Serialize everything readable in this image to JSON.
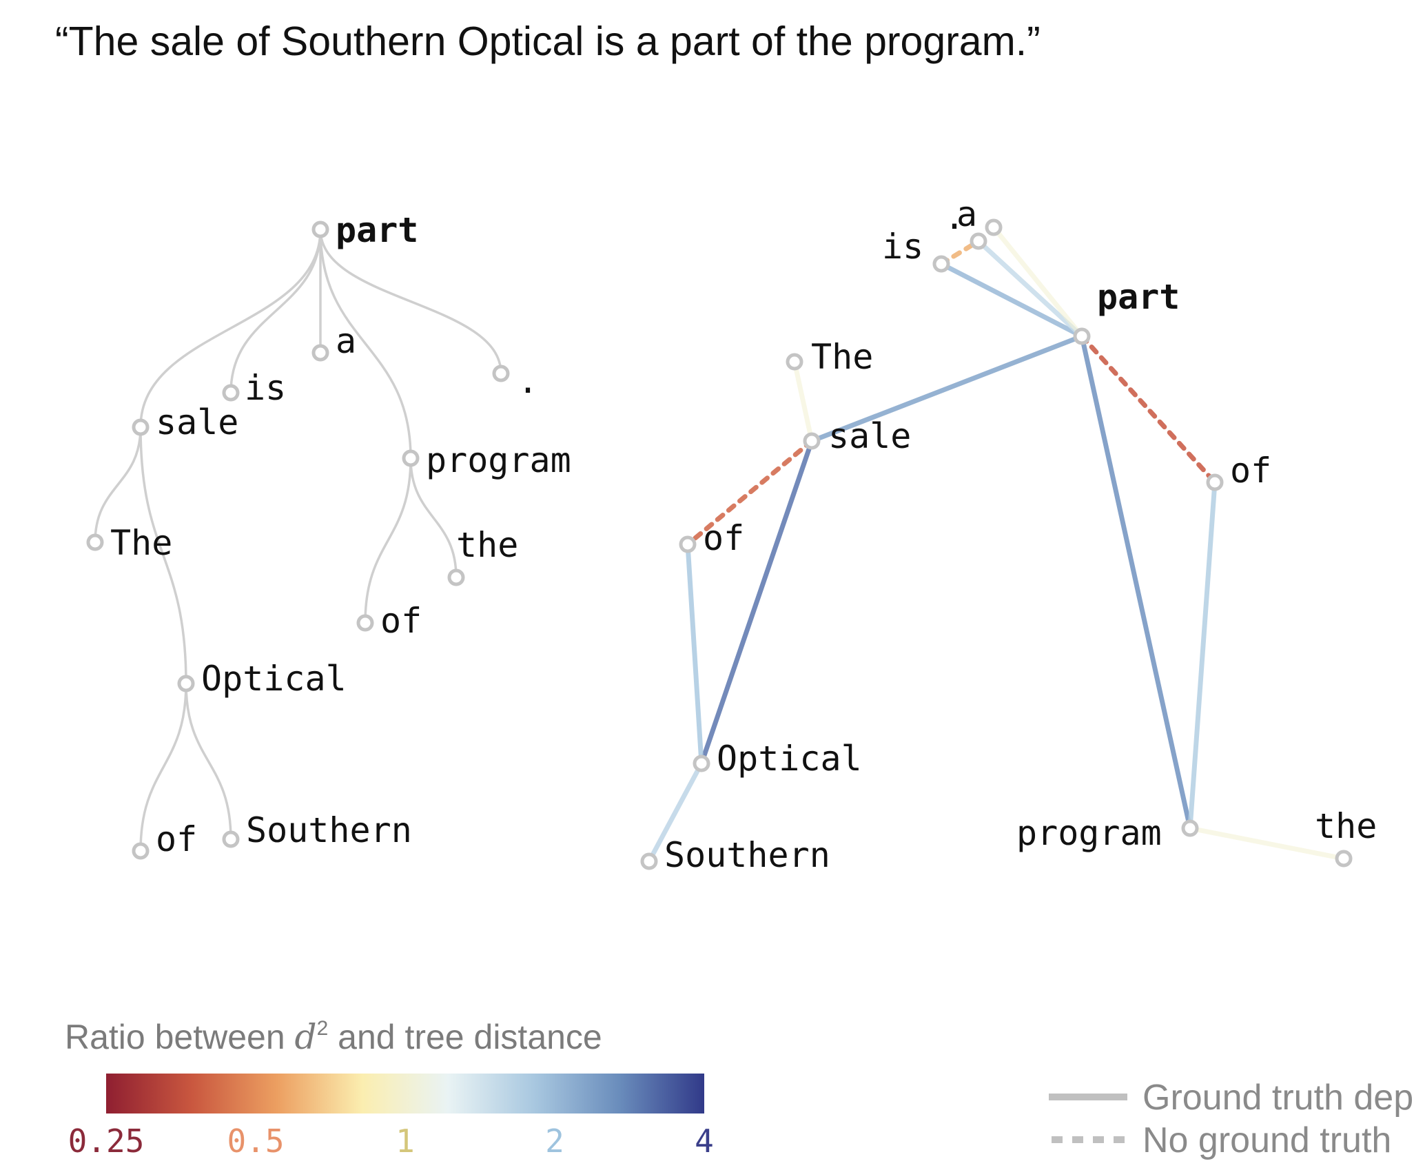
{
  "sentence": "“The sale of Southern Optical is a part of the program.”",
  "parse_tree": {
    "root": "part",
    "nodes": [
      "part",
      "is",
      "a",
      ".",
      "sale",
      "program",
      "The",
      "of",
      "the",
      "Optical",
      "of",
      "Southern"
    ],
    "edges": [
      [
        "part",
        "sale"
      ],
      [
        "part",
        "is"
      ],
      [
        "part",
        "a"
      ],
      [
        "part",
        "program"
      ],
      [
        "part",
        "."
      ],
      [
        "sale",
        "The"
      ],
      [
        "sale",
        "Optical"
      ],
      [
        "program",
        "of"
      ],
      [
        "program",
        "the"
      ],
      [
        "Optical",
        "of"
      ],
      [
        "Optical",
        "Southern"
      ]
    ]
  },
  "embedding_graph": {
    "root": "part",
    "nodes": [
      "a",
      ".",
      "is",
      "part",
      "The",
      "sale",
      "of",
      "of",
      "Optical",
      "Southern",
      "program",
      "the"
    ],
    "edges": [
      {
        "from": "is",
        "to": "part",
        "ratio": 2,
        "ground_truth": true
      },
      {
        "from": ".",
        "to": "part",
        "ratio": 1.5,
        "ground_truth": true
      },
      {
        "from": "a",
        "to": "part",
        "ratio": 1,
        "ground_truth": true
      },
      {
        "from": "is",
        "to": ".",
        "ratio": 0.6,
        "ground_truth": false
      },
      {
        "from": "sale",
        "to": "part",
        "ratio": 2.3,
        "ground_truth": true
      },
      {
        "from": "The",
        "to": "sale",
        "ratio": 1,
        "ground_truth": true
      },
      {
        "from": "sale",
        "to": "of",
        "ratio": 0.4,
        "ground_truth": false
      },
      {
        "from": "sale",
        "to": "Optical",
        "ratio": 3,
        "ground_truth": true
      },
      {
        "from": "of",
        "to": "Optical",
        "ratio": 1.8,
        "ground_truth": true
      },
      {
        "from": "Optical",
        "to": "Southern",
        "ratio": 1.6,
        "ground_truth": true
      },
      {
        "from": "part",
        "to": "of",
        "ratio": 0.37,
        "ground_truth": false
      },
      {
        "from": "part",
        "to": "program",
        "ratio": 2.6,
        "ground_truth": true
      },
      {
        "from": "of",
        "to": "program",
        "ratio": 1.7,
        "ground_truth": true
      },
      {
        "from": "program",
        "to": "the",
        "ratio": 1,
        "ground_truth": true
      }
    ]
  },
  "legend": {
    "colorbar_title_pre": "Ratio between ",
    "colorbar_title_d": "d",
    "colorbar_title_sup": "2",
    "colorbar_title_post": " and tree distance",
    "ticks": [
      "0.25",
      "0.5",
      "1",
      "2",
      "4"
    ],
    "tick_colors": [
      "#8b2a3a",
      "#e8926a",
      "#d4c67a",
      "#9ec3de",
      "#3b3f8a"
    ],
    "gradient_colors": [
      "#8f1f31",
      "#c9573f",
      "#ec9f61",
      "#fbeeb0",
      "#e9f3f4",
      "#a9c8e0",
      "#6a8dbc",
      "#313a89"
    ],
    "solid_label": "Ground truth dep",
    "dashed_label": "No ground truth"
  }
}
